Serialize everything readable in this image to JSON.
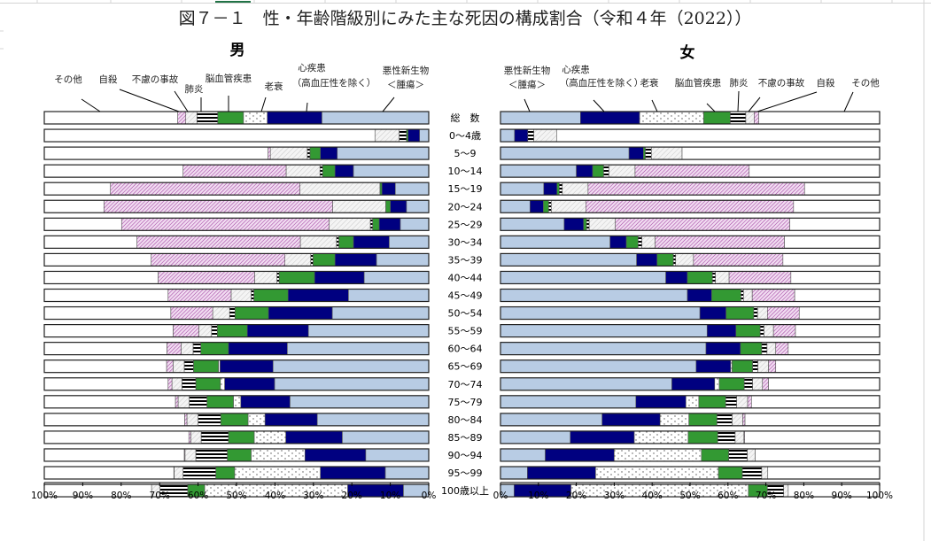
{
  "title": "図７－１　性・年齢階級別にみた主な死因の構成割合（令和４年（2022））",
  "chart_data": {
    "type": "bar",
    "stacked": true,
    "orientation": "horizontal",
    "title": "図７－１　性・年齢階級別にみた主な死因の構成割合（令和４年（2022））",
    "unit": "%",
    "xlim": [
      0,
      100
    ],
    "x_ticks": [
      "0%",
      "10%",
      "20%",
      "30%",
      "40%",
      "50%",
      "60%",
      "70%",
      "80%",
      "90%",
      "100%"
    ],
    "categories": [
      "総　数",
      "0～4歳",
      "5～9",
      "10～14",
      "15～19",
      "20～24",
      "25～29",
      "30～34",
      "35～39",
      "40～44",
      "45～49",
      "50～54",
      "55～59",
      "60～64",
      "65～69",
      "70～74",
      "75～79",
      "80～84",
      "85～89",
      "90～94",
      "95～99",
      "100歳以上"
    ],
    "causes": [
      {
        "name": "悪性新生物＜腫瘍＞",
        "label_lines": [
          "悪性新生物",
          "＜腫瘍＞"
        ],
        "color": "#b8cce4",
        "pattern": "solid"
      },
      {
        "name": "心疾患（高血圧性を除く）",
        "label_lines": [
          "心疾患",
          "（高血圧性を除く）"
        ],
        "color": "#000080",
        "pattern": "solid"
      },
      {
        "name": "老衰",
        "label_lines": [
          "老衰"
        ],
        "color": "#ffffff",
        "pattern": "dots"
      },
      {
        "name": "脳血管疾患",
        "label_lines": [
          "脳血管疾患"
        ],
        "color": "#339933",
        "pattern": "solid"
      },
      {
        "name": "肺炎",
        "label_lines": [
          "肺炎"
        ],
        "color": "#000000",
        "pattern": "hstripes"
      },
      {
        "name": "不慮の事故",
        "label_lines": [
          "不慮の事故"
        ],
        "color": "#bbbbbb",
        "pattern": "diag"
      },
      {
        "name": "自殺",
        "label_lines": [
          "自殺"
        ],
        "color": "#a040a0",
        "pattern": "crosshatch"
      },
      {
        "name": "その他",
        "label_lines": [
          "その他"
        ],
        "color": "#ffffff",
        "pattern": "solid"
      }
    ],
    "panels": [
      {
        "sex": "男",
        "direction": "right-to-left",
        "values": [
          [
            27.8,
            14.2,
            6.2,
            6.7,
            5.4,
            2.9,
            2.1,
            34.7
          ],
          [
            2.4,
            3.0,
            0,
            0.4,
            1.9,
            6.3,
            0,
            86.0
          ],
          [
            23.8,
            4.4,
            0,
            2.7,
            0.7,
            9.6,
            0.6,
            58.2
          ],
          [
            19.6,
            4.8,
            0,
            3.2,
            0.7,
            8.8,
            26.8,
            36.1
          ],
          [
            8.7,
            3.5,
            0,
            0.5,
            0,
            20.8,
            49.3,
            17.2
          ],
          [
            5.8,
            4.2,
            0,
            1.2,
            0,
            13.8,
            59.5,
            15.5
          ],
          [
            7.4,
            5.5,
            0,
            1.7,
            0.6,
            10.7,
            54.0,
            20.1
          ],
          [
            10.3,
            9.3,
            0,
            3.8,
            0.6,
            9.4,
            42.5,
            24.1
          ],
          [
            13.6,
            10.8,
            0,
            5.7,
            0.6,
            6.7,
            34.8,
            27.8
          ],
          [
            16.8,
            12.9,
            0,
            9.2,
            0.6,
            5.8,
            25.1,
            29.6
          ],
          [
            20.9,
            15.7,
            0,
            8.9,
            0.7,
            5.2,
            16.4,
            32.2
          ],
          [
            25.1,
            16.6,
            0,
            8.7,
            1.4,
            4.4,
            10.9,
            32.9
          ],
          [
            31.3,
            15.9,
            0,
            7.8,
            1.5,
            3.3,
            6.7,
            33.5
          ],
          [
            36.8,
            15.3,
            0,
            7.2,
            2.0,
            3.1,
            3.7,
            31.9
          ],
          [
            40.5,
            13.8,
            0.4,
            6.5,
            2.4,
            2.9,
            1.7,
            31.8
          ],
          [
            40.1,
            13.0,
            1.1,
            6.4,
            3.6,
            2.6,
            1.0,
            32.2
          ],
          [
            36.1,
            12.8,
            1.9,
            6.9,
            4.6,
            2.9,
            0.7,
            34.1
          ],
          [
            29.0,
            13.6,
            4.4,
            7.1,
            5.9,
            2.9,
            0.6,
            36.5
          ],
          [
            22.5,
            14.7,
            8.2,
            6.7,
            7.1,
            2.7,
            0.5,
            37.6
          ],
          [
            16.4,
            15.8,
            14.0,
            6.2,
            8.2,
            2.8,
            0.2,
            36.4
          ],
          [
            11.3,
            16.9,
            22.3,
            4.9,
            8.5,
            2.3,
            0.1,
            33.7
          ],
          [
            6.6,
            14.5,
            37.2,
            4.4,
            7.2,
            2.2,
            0,
            27.9
          ]
        ]
      },
      {
        "sex": "女",
        "direction": "left-to-right",
        "values": [
          [
            21.1,
            15.6,
            16.9,
            7.0,
            4.1,
            2.2,
            1.2,
            31.9
          ],
          [
            3.7,
            3.5,
            0,
            0,
            1.6,
            6.0,
            0,
            85.2
          ],
          [
            33.9,
            3.8,
            0,
            0.5,
            1.6,
            8.1,
            0,
            52.1
          ],
          [
            20.0,
            4.3,
            0,
            2.9,
            1.4,
            6.9,
            30.1,
            34.4
          ],
          [
            11.4,
            3.5,
            0,
            0.6,
            0.8,
            6.8,
            57.1,
            19.8
          ],
          [
            7.8,
            3.5,
            0,
            1.4,
            0.7,
            9.1,
            54.8,
            22.7
          ],
          [
            16.8,
            5.1,
            0,
            0.8,
            0.7,
            6.9,
            46.0,
            23.7
          ],
          [
            28.9,
            4.3,
            0,
            3.1,
            1.0,
            3.5,
            34.1,
            25.1
          ],
          [
            35.9,
            5.4,
            0,
            4.3,
            0.6,
            4.7,
            23.6,
            25.5
          ],
          [
            43.6,
            5.7,
            0,
            6.6,
            0.8,
            3.6,
            16.3,
            23.4
          ],
          [
            49.3,
            6.4,
            0,
            7.7,
            0.7,
            2.3,
            11.2,
            22.4
          ],
          [
            52.6,
            6.9,
            0,
            7.3,
            1.0,
            2.6,
            8.4,
            21.2
          ],
          [
            54.5,
            7.6,
            0,
            6.4,
            1.0,
            2.5,
            5.8,
            22.2
          ],
          [
            54.2,
            9.1,
            0,
            5.6,
            1.4,
            2.3,
            3.3,
            24.1
          ],
          [
            51.6,
            9.1,
            0.4,
            5.4,
            1.4,
            2.8,
            1.9,
            27.4
          ],
          [
            45.2,
            11.3,
            1.2,
            6.6,
            2.2,
            2.6,
            1.6,
            29.3
          ],
          [
            35.7,
            13.2,
            3.4,
            7.1,
            2.9,
            2.9,
            1.0,
            33.8
          ],
          [
            26.8,
            15.3,
            7.6,
            7.4,
            4.0,
            2.8,
            0.6,
            35.5
          ],
          [
            18.4,
            16.9,
            14.2,
            7.8,
            4.6,
            2.3,
            0.2,
            35.6
          ],
          [
            11.8,
            18.2,
            23.0,
            7.2,
            4.9,
            2.1,
            0,
            32.8
          ],
          [
            7.1,
            18.0,
            32.4,
            6.3,
            5.1,
            1.6,
            0,
            29.5
          ],
          [
            3.6,
            15.0,
            46.8,
            5.0,
            4.3,
            1.2,
            0,
            24.1
          ]
        ]
      }
    ]
  }
}
